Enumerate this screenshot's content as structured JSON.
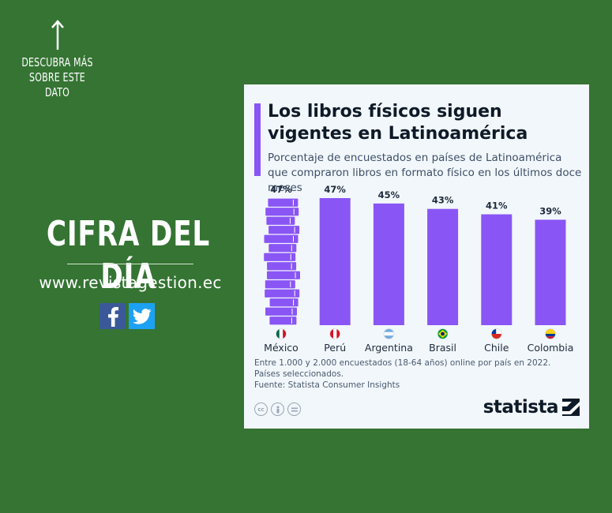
{
  "left_panel": {
    "cta_lines": [
      "DESCUBRA MÁS",
      "SOBRE ESTE",
      "DATO"
    ],
    "headline": "CIFRA DEL DÍA",
    "website": "www.revistagestion.ec",
    "social": [
      {
        "name": "facebook",
        "icon": "facebook-icon",
        "color": "#3b5998"
      },
      {
        "name": "twitter",
        "icon": "twitter-icon",
        "color": "#1da1f2"
      }
    ]
  },
  "card": {
    "notes": [
      "Entre 1.000 y 2.000 encuestados (18-64 años) online por país en 2022.",
      "Países seleccionados.",
      "Fuente: Statista Consumer Insights"
    ],
    "license_icons": [
      "cc-icon",
      "person-icon",
      "equal-icon"
    ],
    "brand": "statista",
    "accent_color": "#8a55f5"
  },
  "chart_data": {
    "type": "bar",
    "title": "Los libros físicos siguen vigentes en Latinoamérica",
    "subtitle": "Porcentaje de encuestados en países de Latinoamérica que compraron libros en formato físico en los últimos doce meses",
    "categories": [
      "México",
      "Perú",
      "Argentina",
      "Brasil",
      "Chile",
      "Colombia"
    ],
    "values": [
      47,
      47,
      45,
      43,
      41,
      39
    ],
    "data_labels": [
      "47%",
      "47%",
      "45%",
      "43%",
      "41%",
      "39%"
    ],
    "flags": [
      "mexico-flag-icon",
      "peru-flag-icon",
      "argentina-flag-icon",
      "brazil-flag-icon",
      "chile-flag-icon",
      "colombia-flag-icon"
    ],
    "first_bar_style": "book-stack",
    "bar_color": "#8a55f5",
    "ylim": [
      0,
      47
    ],
    "grid": false,
    "legend": "none"
  }
}
